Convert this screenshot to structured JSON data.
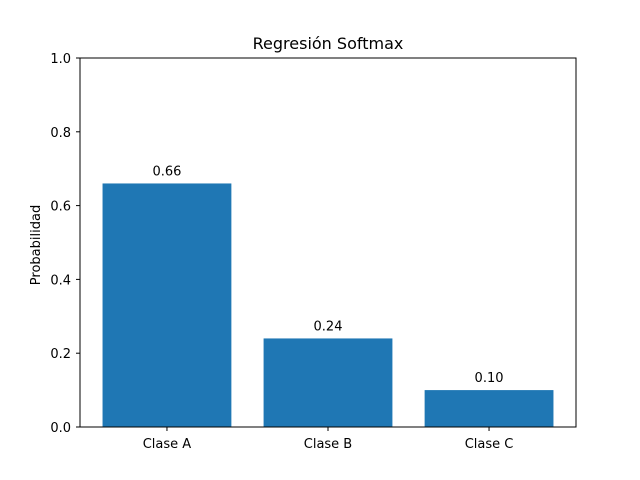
{
  "chart_data": {
    "type": "bar",
    "title": "Regresión Softmax",
    "xlabel": "",
    "ylabel": "Probabilidad",
    "categories": [
      "Clase A",
      "Clase B",
      "Clase C"
    ],
    "values": [
      0.66,
      0.24,
      0.1
    ],
    "data_labels": [
      "0.66",
      "0.24",
      "0.10"
    ],
    "ylim": [
      0,
      1.0
    ],
    "yticks": [
      0.0,
      0.2,
      0.4,
      0.6,
      0.8,
      1.0
    ],
    "ytick_labels": [
      "0.0",
      "0.2",
      "0.4",
      "0.6",
      "0.8",
      "1.0"
    ],
    "grid": false,
    "bar_color": "#1f77b4"
  }
}
